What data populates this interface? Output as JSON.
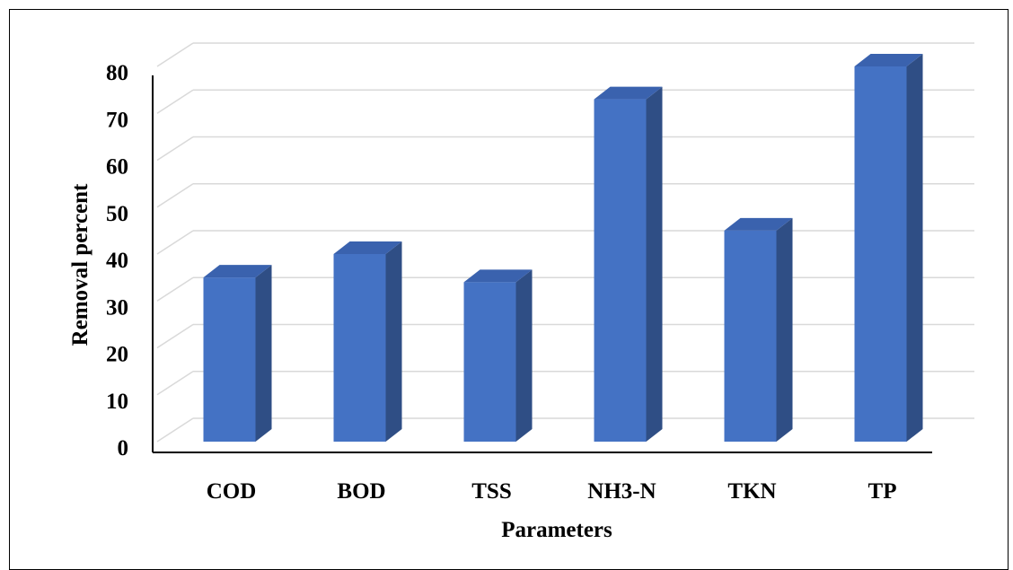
{
  "chart_data": {
    "type": "bar",
    "style": "3d-column",
    "categories": [
      "COD",
      "BOD",
      "TSS",
      "NH3-N",
      "TKN",
      "TP"
    ],
    "values": [
      35,
      40,
      34,
      73,
      45,
      80
    ],
    "xlabel": "Parameters",
    "ylabel": "Removal percent",
    "ylim": [
      0,
      80
    ],
    "yticks": [
      "0",
      "10",
      "20",
      "30",
      "40",
      "50",
      "60",
      "70",
      "80"
    ],
    "grid": true,
    "legend": "none",
    "colors": {
      "bar_front": "#4472C4",
      "bar_side": "#2F4E85",
      "bar_top": "#3A62AE",
      "gridline": "#D9D9D9",
      "axis": "#000000"
    }
  }
}
